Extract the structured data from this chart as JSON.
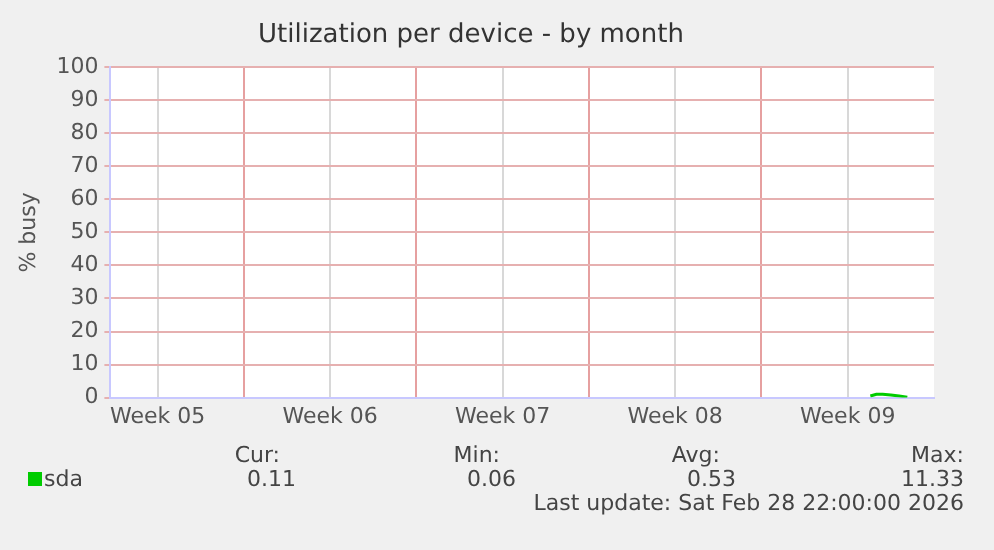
{
  "chart_data": {
    "type": "line",
    "title": "Utilization per device - by month",
    "ylabel": "% busy",
    "x": [
      "2026-02-27T10:00",
      "2026-02-27T16:00",
      "2026-02-27T22:00",
      "2026-02-28T06:00",
      "2026-02-28T14:00",
      "2026-02-28T22:00"
    ],
    "series": [
      {
        "name": "sda",
        "color": "#00cc00",
        "values": [
          0.5,
          1,
          1,
          0.8,
          0.5,
          0.1
        ]
      }
    ],
    "xlim": [
      "2026-01-27T14:00",
      "2026-03-02T00:00"
    ],
    "xticks": [
      {
        "value": "2026-01-29T12:00",
        "label": "Week 05"
      },
      {
        "value": "2026-02-02T00:00",
        "label": null
      },
      {
        "value": "2026-02-05T12:00",
        "label": "Week 06"
      },
      {
        "value": "2026-02-09T00:00",
        "label": null
      },
      {
        "value": "2026-02-12T12:00",
        "label": "Week 07"
      },
      {
        "value": "2026-02-16T00:00",
        "label": null
      },
      {
        "value": "2026-02-19T12:00",
        "label": "Week 08"
      },
      {
        "value": "2026-02-23T00:00",
        "label": null
      },
      {
        "value": "2026-02-26T12:00",
        "label": "Week 09"
      }
    ],
    "ylim": [
      0,
      100
    ],
    "yticks": [
      0,
      10,
      20,
      30,
      40,
      50,
      60,
      70,
      80,
      90,
      100
    ],
    "grid": true,
    "legend": "bottom left",
    "marker": "none",
    "line_style": "solid",
    "annotations": [
      "Cur:",
      "0.11",
      "Min:",
      "0.06",
      "Avg:",
      "0.53",
      "Max:",
      "11.33",
      "Last update: Sat Feb 28 22:00:00 2026"
    ]
  }
}
